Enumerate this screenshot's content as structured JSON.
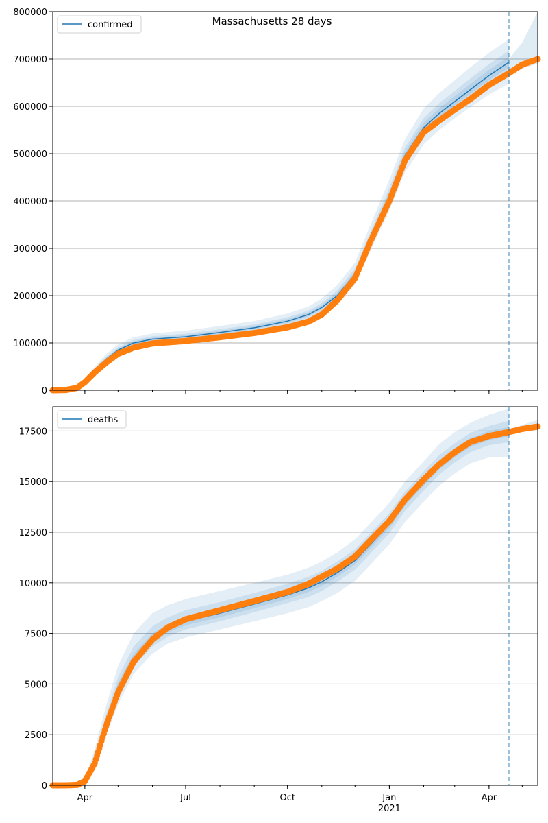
{
  "figure": {
    "title": "Massachusetts 28 days"
  },
  "colors": {
    "model_line": "#1f77b4",
    "band": "#1f77b4",
    "observed": "#ff7f0e",
    "grid": "#b0b0b0",
    "cutoff": "#1f77b4"
  },
  "x_axis": {
    "ticks": [
      {
        "label": "Apr",
        "date": "2020-04-01"
      },
      {
        "label": "Jul",
        "date": "2020-07-01"
      },
      {
        "label": "Oct",
        "date": "2020-10-01"
      },
      {
        "label": "Jan",
        "date": "2021-01-01",
        "sublabel": "2021"
      },
      {
        "label": "Apr",
        "date": "2021-04-01"
      }
    ],
    "xlim": [
      "2020-03-03",
      "2021-05-15"
    ],
    "forecast_cutoff": "2021-04-19"
  },
  "chart_data": [
    {
      "type": "line",
      "legend": "confirmed",
      "legend_position": "upper left",
      "grid": "horizontal",
      "ylim": [
        0,
        800000
      ],
      "yticks": [
        "0",
        "100000",
        "200000",
        "300000",
        "400000",
        "500000",
        "600000",
        "700000",
        "800000"
      ],
      "model_fit": {
        "dates": [
          "2020-03-03",
          "2020-03-15",
          "2020-03-25",
          "2020-04-01",
          "2020-04-10",
          "2020-04-20",
          "2020-05-01",
          "2020-05-15",
          "2020-06-01",
          "2020-07-01",
          "2020-08-01",
          "2020-09-01",
          "2020-10-01",
          "2020-10-20",
          "2020-11-01",
          "2020-11-15",
          "2020-12-01",
          "2020-12-15",
          "2021-01-01",
          "2021-01-15",
          "2021-02-01",
          "2021-02-15",
          "2021-03-01",
          "2021-03-15",
          "2021-04-01",
          "2021-04-19"
        ],
        "values": [
          0,
          1000,
          7000,
          20000,
          42000,
          65000,
          85000,
          100000,
          108000,
          113000,
          122000,
          132000,
          146000,
          160000,
          175000,
          200000,
          245000,
          320000,
          410000,
          495000,
          555000,
          585000,
          610000,
          635000,
          665000,
          693000
        ]
      },
      "observed": {
        "dates": [
          "2020-03-03",
          "2020-03-15",
          "2020-03-25",
          "2020-04-01",
          "2020-04-10",
          "2020-04-20",
          "2020-05-01",
          "2020-05-15",
          "2020-06-01",
          "2020-07-01",
          "2020-08-01",
          "2020-09-01",
          "2020-10-01",
          "2020-10-20",
          "2020-11-01",
          "2020-11-15",
          "2020-12-01",
          "2020-12-15",
          "2021-01-01",
          "2021-01-15",
          "2021-02-01",
          "2021-02-15",
          "2021-03-01",
          "2021-03-15",
          "2021-04-01",
          "2021-04-19",
          "2021-05-01",
          "2021-05-15"
        ],
        "values": [
          0,
          500,
          5000,
          17000,
          38000,
          58000,
          77000,
          90000,
          99000,
          104000,
          112000,
          121000,
          133000,
          145000,
          160000,
          190000,
          237000,
          315000,
          400000,
          485000,
          545000,
          570000,
          593000,
          615000,
          645000,
          670000,
          688000,
          700000
        ]
      },
      "bands": [
        {
          "lower": [
            0,
            800,
            6000,
            17000,
            36000,
            56000,
            74000,
            88000,
            96000,
            101000,
            109000,
            119000,
            132000,
            145000,
            158000,
            182000,
            224000,
            295000,
            380000,
            460000,
            520000,
            550000,
            575000,
            598000,
            625000,
            648000
          ],
          "upper": [
            0,
            1300,
            8500,
            24000,
            50000,
            76000,
            97000,
            112000,
            120000,
            126000,
            136000,
            146000,
            162000,
            177000,
            194000,
            222000,
            270000,
            350000,
            445000,
            530000,
            595000,
            628000,
            655000,
            682000,
            713000,
            742000
          ]
        },
        {
          "lower": [
            0,
            900,
            6500,
            18500,
            39000,
            60500,
            79500,
            94000,
            102000,
            107000,
            115500,
            125500,
            139000,
            152500,
            166500,
            191000,
            234500,
            307500,
            395000,
            477500,
            537500,
            567500,
            592500,
            616500,
            645000,
            670500
          ],
          "upper": [
            0,
            1150,
            7800,
            22000,
            46000,
            70500,
            91000,
            106000,
            114000,
            119500,
            129000,
            139000,
            154000,
            168500,
            184500,
            211000,
            257500,
            335000,
            427500,
            512500,
            575000,
            606500,
            632500,
            658500,
            689000,
            717500
          ]
        },
        {
          "lower": [
            0,
            950,
            6750,
            19300,
            40500,
            62800,
            82300,
            97000,
            105000,
            110000,
            118800,
            128800,
            142500,
            156300,
            170800,
            195500,
            239800,
            313800,
            402500,
            486300,
            546300,
            576300,
            601300,
            625800,
            655000,
            681800
          ],
          "upper": [
            0,
            1080,
            7400,
            21000,
            44000,
            67800,
            88000,
            103000,
            111000,
            116300,
            125500,
            135500,
            150000,
            164300,
            179800,
            205500,
            251300,
            327500,
            418800,
            503800,
            565000,
            595800,
            621300,
            646800,
            677000,
            705300
          ]
        }
      ],
      "forecast_band": {
        "dates": [
          "2021-04-19",
          "2021-05-01",
          "2021-05-15"
        ],
        "lower": [
          665000,
          680000,
          690000
        ],
        "upper": [
          700000,
          735000,
          800000
        ]
      }
    },
    {
      "type": "line",
      "legend": "deaths",
      "legend_position": "upper left",
      "grid": "horizontal",
      "ylim": [
        0,
        18700
      ],
      "yticks": [
        "0",
        "2500",
        "5000",
        "7500",
        "10000",
        "12500",
        "15000",
        "17500"
      ],
      "model_fit": {
        "dates": [
          "2020-03-03",
          "2020-03-15",
          "2020-03-25",
          "2020-04-01",
          "2020-04-10",
          "2020-04-20",
          "2020-05-01",
          "2020-05-15",
          "2020-06-01",
          "2020-06-15",
          "2020-07-01",
          "2020-08-01",
          "2020-09-01",
          "2020-10-01",
          "2020-10-20",
          "2020-11-01",
          "2020-11-15",
          "2020-12-01",
          "2020-12-15",
          "2021-01-01",
          "2021-01-15",
          "2021-02-01",
          "2021-02-15",
          "2021-03-01",
          "2021-03-15",
          "2021-04-01",
          "2021-04-19"
        ],
        "values": [
          0,
          10,
          50,
          200,
          1200,
          3000,
          4800,
          6200,
          7200,
          7700,
          8100,
          8500,
          8950,
          9400,
          9750,
          10050,
          10500,
          11100,
          11900,
          12900,
          14000,
          15000,
          15800,
          16400,
          16900,
          17250,
          17450
        ]
      },
      "observed": {
        "dates": [
          "2020-03-03",
          "2020-03-15",
          "2020-03-25",
          "2020-04-01",
          "2020-04-10",
          "2020-04-20",
          "2020-05-01",
          "2020-05-15",
          "2020-06-01",
          "2020-06-15",
          "2020-07-01",
          "2020-08-01",
          "2020-09-01",
          "2020-10-01",
          "2020-10-20",
          "2020-11-01",
          "2020-11-15",
          "2020-12-01",
          "2020-12-15",
          "2021-01-01",
          "2021-01-15",
          "2021-02-01",
          "2021-02-15",
          "2021-03-01",
          "2021-03-15",
          "2021-04-01",
          "2021-04-19",
          "2021-05-01",
          "2021-05-15"
        ],
        "values": [
          0,
          0,
          20,
          200,
          1100,
          2900,
          4600,
          6100,
          7200,
          7800,
          8200,
          8650,
          9100,
          9550,
          9950,
          10300,
          10700,
          11300,
          12100,
          13050,
          14100,
          15100,
          15850,
          16450,
          16950,
          17250,
          17450,
          17600,
          17720
        ]
      },
      "bands": [
        {
          "lower": [
            0,
            5,
            30,
            120,
            800,
            2400,
            4000,
            5500,
            6500,
            7000,
            7300,
            7700,
            8100,
            8500,
            8800,
            9100,
            9500,
            10100,
            10900,
            11900,
            13000,
            14000,
            14800,
            15400,
            15900,
            16200,
            16200
          ],
          "upper": [
            0,
            20,
            80,
            320,
            1800,
            3900,
            5900,
            7500,
            8500,
            8900,
            9200,
            9600,
            10000,
            10400,
            10750,
            11050,
            11500,
            12150,
            12950,
            13950,
            15000,
            16000,
            16850,
            17450,
            17900,
            18300,
            18600
          ]
        },
        {
          "lower": [
            0,
            8,
            40,
            160,
            1000,
            2700,
            4400,
            5850,
            6850,
            7350,
            7700,
            8100,
            8550,
            9000,
            9300,
            9600,
            10050,
            10650,
            11450,
            12450,
            13550,
            14550,
            15350,
            15950,
            16450,
            16800,
            16950
          ],
          "upper": [
            0,
            15,
            65,
            260,
            1500,
            3450,
            5350,
            6850,
            7850,
            8300,
            8650,
            9050,
            9500,
            9950,
            10300,
            10600,
            11050,
            11650,
            12450,
            13450,
            14500,
            15500,
            16300,
            16900,
            17400,
            17750,
            18000
          ]
        },
        {
          "lower": [
            0,
            9,
            45,
            180,
            1100,
            2850,
            4600,
            6050,
            7050,
            7550,
            7900,
            8300,
            8750,
            9200,
            9550,
            9850,
            10300,
            10900,
            11700,
            12700,
            13800,
            14800,
            15600,
            16200,
            16700,
            17050,
            17250
          ],
          "upper": [
            0,
            12,
            57,
            230,
            1350,
            3200,
            5050,
            6500,
            7500,
            7950,
            8350,
            8750,
            9200,
            9650,
            10000,
            10300,
            10750,
            11350,
            12150,
            13150,
            14250,
            15250,
            16050,
            16650,
            17150,
            17500,
            17700
          ]
        }
      ],
      "forecast_band": {
        "dates": [
          "2021-04-19",
          "2021-05-01",
          "2021-05-15"
        ],
        "lower": [
          17350,
          17450,
          17550
        ],
        "upper": [
          17600,
          17800,
          18050
        ]
      }
    }
  ]
}
